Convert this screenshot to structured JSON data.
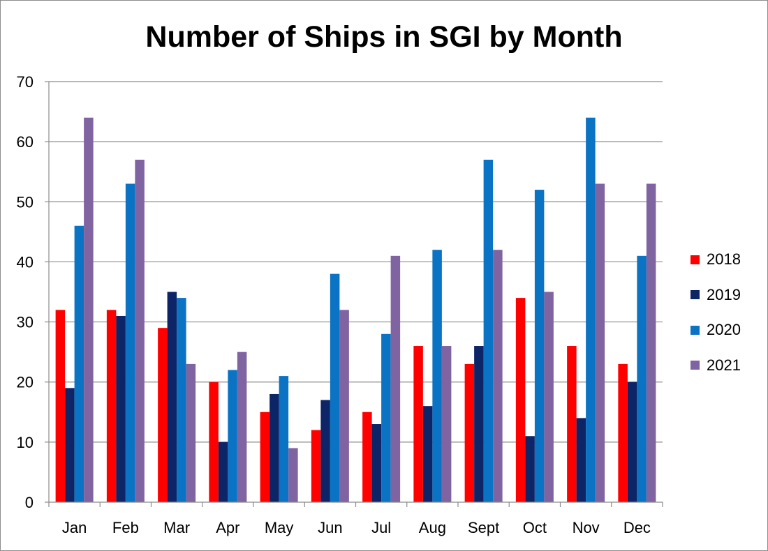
{
  "chart_data": {
    "type": "bar",
    "title": "Number of Ships in SGI by Month",
    "xlabel": "",
    "ylabel": "",
    "categories": [
      "Jan",
      "Feb",
      "Mar",
      "Apr",
      "May",
      "Jun",
      "Jul",
      "Aug",
      "Sept",
      "Oct",
      "Nov",
      "Dec"
    ],
    "ylim": [
      0,
      70
    ],
    "yticks": [
      0,
      10,
      20,
      30,
      40,
      50,
      60,
      70
    ],
    "grid": true,
    "legend_position": "right",
    "series": [
      {
        "name": "2018",
        "color": "#ff0000",
        "values": [
          32,
          32,
          29,
          20,
          15,
          12,
          15,
          26,
          23,
          34,
          26,
          23
        ]
      },
      {
        "name": "2019",
        "color": "#0d2567",
        "values": [
          19,
          31,
          35,
          10,
          18,
          17,
          13,
          16,
          26,
          11,
          14,
          20
        ]
      },
      {
        "name": "2020",
        "color": "#0b73c4",
        "values": [
          46,
          53,
          34,
          22,
          21,
          38,
          28,
          42,
          57,
          52,
          64,
          41
        ]
      },
      {
        "name": "2021",
        "color": "#8064a2",
        "values": [
          64,
          57,
          23,
          25,
          9,
          32,
          41,
          26,
          42,
          35,
          53,
          53
        ]
      }
    ]
  }
}
